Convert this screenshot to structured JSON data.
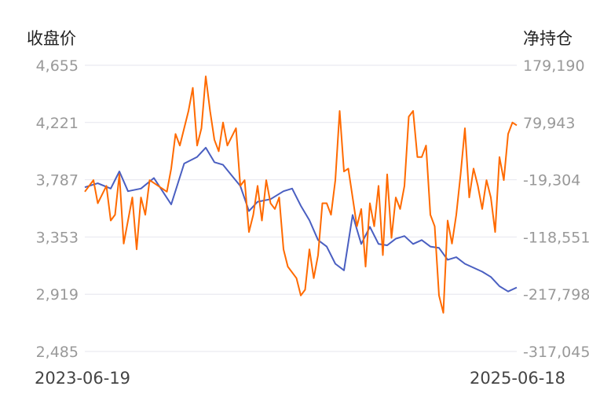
{
  "chart_data": {
    "type": "line",
    "left_axis_title": "收盘价",
    "right_axis_title": "净持仓",
    "left_ticks": [
      "4,655",
      "4,221",
      "3,787",
      "3,353",
      "2,919",
      "2,485"
    ],
    "right_ticks": [
      "179,190",
      "79,943",
      "-19,304",
      "-118,551",
      "-217,798",
      "-317,045"
    ],
    "x_start_label": "2023-06-19",
    "x_end_label": "2025-06-18",
    "left_ylim": [
      2485,
      4655
    ],
    "right_ylim": [
      -317045,
      179190
    ],
    "grid": true,
    "series": [
      {
        "axis": "left",
        "color": "#4a5fc1",
        "x": [
          0,
          0.03,
          0.06,
          0.08,
          0.1,
          0.13,
          0.16,
          0.2,
          0.23,
          0.26,
          0.28,
          0.3,
          0.32,
          0.34,
          0.36,
          0.38,
          0.4,
          0.43,
          0.46,
          0.48,
          0.5,
          0.52,
          0.54,
          0.56,
          0.58,
          0.6,
          0.62,
          0.64,
          0.66,
          0.68,
          0.7,
          0.72,
          0.74,
          0.76,
          0.78,
          0.8,
          0.82,
          0.84,
          0.86,
          0.88,
          0.9,
          0.92,
          0.94,
          0.96,
          0.98,
          1.0
        ],
        "values": [
          3730,
          3760,
          3720,
          3850,
          3700,
          3720,
          3800,
          3600,
          3910,
          3960,
          4030,
          3920,
          3900,
          3820,
          3740,
          3550,
          3620,
          3640,
          3700,
          3720,
          3590,
          3480,
          3330,
          3280,
          3150,
          3100,
          3520,
          3300,
          3430,
          3300,
          3290,
          3340,
          3360,
          3300,
          3330,
          3280,
          3270,
          3180,
          3200,
          3150,
          3120,
          3090,
          3050,
          2980,
          2940,
          2970
        ]
      },
      {
        "axis": "right",
        "color": "#ff6a00",
        "x": [
          0,
          0.02,
          0.03,
          0.05,
          0.06,
          0.07,
          0.08,
          0.09,
          0.11,
          0.12,
          0.13,
          0.14,
          0.15,
          0.17,
          0.19,
          0.2,
          0.21,
          0.22,
          0.24,
          0.25,
          0.26,
          0.27,
          0.28,
          0.29,
          0.3,
          0.31,
          0.32,
          0.33,
          0.35,
          0.36,
          0.37,
          0.38,
          0.39,
          0.4,
          0.41,
          0.42,
          0.43,
          0.44,
          0.45,
          0.46,
          0.47,
          0.49,
          0.5,
          0.51,
          0.52,
          0.53,
          0.54,
          0.55,
          0.56,
          0.57,
          0.58,
          0.59,
          0.6,
          0.61,
          0.62,
          0.63,
          0.64,
          0.65,
          0.66,
          0.67,
          0.68,
          0.69,
          0.7,
          0.71,
          0.72,
          0.73,
          0.74,
          0.75,
          0.76,
          0.77,
          0.78,
          0.79,
          0.8,
          0.81,
          0.82,
          0.83,
          0.84,
          0.85,
          0.86,
          0.87,
          0.88,
          0.89,
          0.9,
          0.91,
          0.92,
          0.93,
          0.94,
          0.95,
          0.96,
          0.97,
          0.98,
          0.99,
          1.0
        ],
        "values": [
          -40000,
          -20000,
          -60000,
          -30000,
          -90000,
          -80000,
          -10000,
          -130000,
          -50000,
          -140000,
          -50000,
          -80000,
          -20000,
          -30000,
          -40000,
          0,
          60000,
          40000,
          100000,
          140000,
          40000,
          70000,
          160000,
          100000,
          50000,
          30000,
          80000,
          40000,
          70000,
          -30000,
          -20000,
          -110000,
          -80000,
          -30000,
          -90000,
          -20000,
          -60000,
          -70000,
          -50000,
          -140000,
          -170000,
          -190000,
          -220000,
          -210000,
          -140000,
          -190000,
          -150000,
          -60000,
          -60000,
          -80000,
          -20000,
          100000,
          -5000,
          0,
          -50000,
          -100000,
          -70000,
          -170000,
          -60000,
          -100000,
          -30000,
          -150000,
          -10000,
          -120000,
          -50000,
          -70000,
          -30000,
          90000,
          100000,
          20000,
          20000,
          40000,
          -80000,
          -100000,
          -220000,
          -250000,
          -90000,
          -130000,
          -80000,
          -10000,
          70000,
          -50000,
          0,
          -30000,
          -70000,
          -20000,
          -50000,
          -110000,
          20000,
          -20000,
          60000,
          80000,
          75000
        ]
      }
    ]
  }
}
